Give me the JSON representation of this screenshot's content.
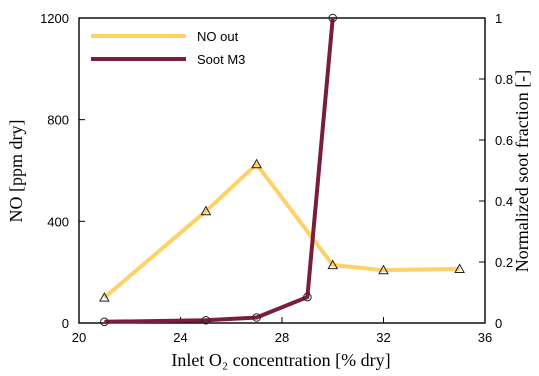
{
  "chart_data": {
    "type": "line",
    "xlabel": "Inlet O₂ concentration [% dry]",
    "ylabel": "NO [ppm dry]",
    "y2label": "Normalized soot fraction [-]",
    "xlim": [
      20,
      36
    ],
    "ylim": [
      0,
      1200
    ],
    "y2lim": [
      0,
      1
    ],
    "x_ticks": [
      "20",
      "24",
      "28",
      "32",
      "36"
    ],
    "y_ticks": [
      "0",
      "400",
      "800",
      "1200"
    ],
    "y2_ticks": [
      "0",
      "0.2",
      "0.4",
      "0.6",
      "0.8",
      "1"
    ],
    "grid": false,
    "legend_position": "top-left",
    "series": [
      {
        "name": "NO out",
        "axis": "left",
        "color": "#FFD166",
        "marker": "triangle",
        "x": [
          21,
          25,
          27,
          30,
          32,
          35
        ],
        "y": [
          100,
          440,
          625,
          228,
          208,
          213
        ]
      },
      {
        "name": "Soot M3",
        "axis": "right",
        "color": "#7B1E3A",
        "marker": "circle",
        "x": [
          21,
          25,
          27,
          29,
          30
        ],
        "y": [
          0.004,
          0.009,
          0.018,
          0.085,
          1.0
        ]
      }
    ]
  }
}
